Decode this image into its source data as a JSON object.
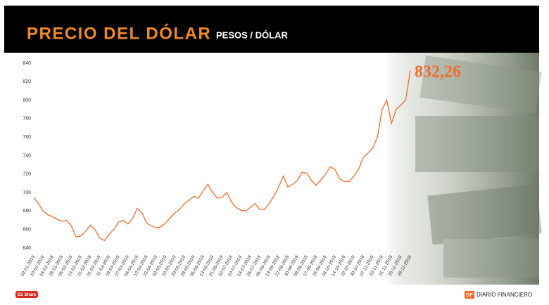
{
  "chart_data": {
    "type": "line",
    "title": "PRECIO DEL DÓLAR",
    "subtitle": "PESOS / DÓLAR",
    "categories": [
      "02-01-2019",
      null,
      "10-01-2019",
      null,
      "18-01-2019",
      null,
      "28-01-2019",
      null,
      "05-02-2019",
      null,
      "13-02-2019",
      null,
      "21-02-2019",
      null,
      "01-03-2019",
      null,
      "11-03-2019",
      null,
      "19-03-2019",
      null,
      "27-03-2019",
      null,
      "04-04-2019",
      null,
      "12-04-2019",
      null,
      "23-04-2019",
      null,
      "02-05-2019",
      null,
      "10-05-2019",
      null,
      "20-05-2019",
      null,
      "28-05-2019",
      null,
      "05-06-2019",
      null,
      "13-06-2019",
      null,
      "21-06-2019",
      null,
      "02-07-2019",
      null,
      "10-07-2019",
      null,
      "18-07-2019",
      null,
      "26-07-2019",
      null,
      "05-08-2019",
      null,
      "13-08-2019",
      null,
      "22-08-2019",
      null,
      "30-08-2019",
      null,
      "09-09-2019",
      null,
      "17-09-2019",
      null,
      "26-09-2019",
      null,
      "04-10-2019",
      null,
      "14-10-2019",
      null,
      "22-10-2019",
      null,
      "30-10-2019",
      null,
      "07-11-2019",
      null,
      "15-11-2019",
      null,
      "21-11-2019",
      null,
      "26-11-2019",
      null,
      "28-11-2019"
    ],
    "values": [
      695,
      688,
      680,
      676,
      674,
      671,
      669,
      670,
      664,
      652,
      653,
      658,
      665,
      660,
      651,
      648,
      655,
      660,
      668,
      670,
      666,
      672,
      683,
      678,
      667,
      664,
      662,
      663,
      667,
      673,
      678,
      682,
      688,
      692,
      696,
      694,
      702,
      709,
      700,
      694,
      695,
      700,
      690,
      684,
      681,
      680,
      684,
      688,
      682,
      682,
      688,
      696,
      706,
      718,
      706,
      709,
      713,
      722,
      721,
      713,
      708,
      714,
      720,
      728,
      725,
      715,
      712,
      712,
      718,
      725,
      738,
      743,
      748,
      760,
      790,
      800,
      775,
      790,
      795,
      800,
      832.26
    ],
    "value_labels": [
      null,
      null,
      null,
      null,
      null,
      null,
      null,
      null,
      null,
      null,
      null,
      null,
      null,
      null,
      null,
      null,
      null,
      null,
      null,
      null,
      null,
      null,
      null,
      null,
      null,
      null,
      null,
      null,
      null,
      null,
      null,
      null,
      null,
      null,
      null,
      null,
      null,
      null,
      null,
      null,
      null,
      null,
      null,
      null,
      null,
      null,
      null,
      null,
      null,
      null,
      null,
      null,
      null,
      null,
      null,
      null,
      null,
      null,
      null,
      null,
      null,
      null,
      null,
      null,
      null,
      null,
      null,
      null,
      null,
      null,
      null,
      null,
      null,
      null,
      null,
      null,
      null,
      null,
      null,
      null,
      "832,26"
    ],
    "color": "#f26b2a",
    "ylim": [
      640,
      840
    ],
    "yticks": [
      640,
      660,
      680,
      700,
      720,
      740,
      760,
      780,
      800,
      820,
      840
    ],
    "grid": false
  },
  "footer": {
    "badge": "ES Share",
    "logo": "DF",
    "brand": "DIARIO FINANCIERO"
  }
}
